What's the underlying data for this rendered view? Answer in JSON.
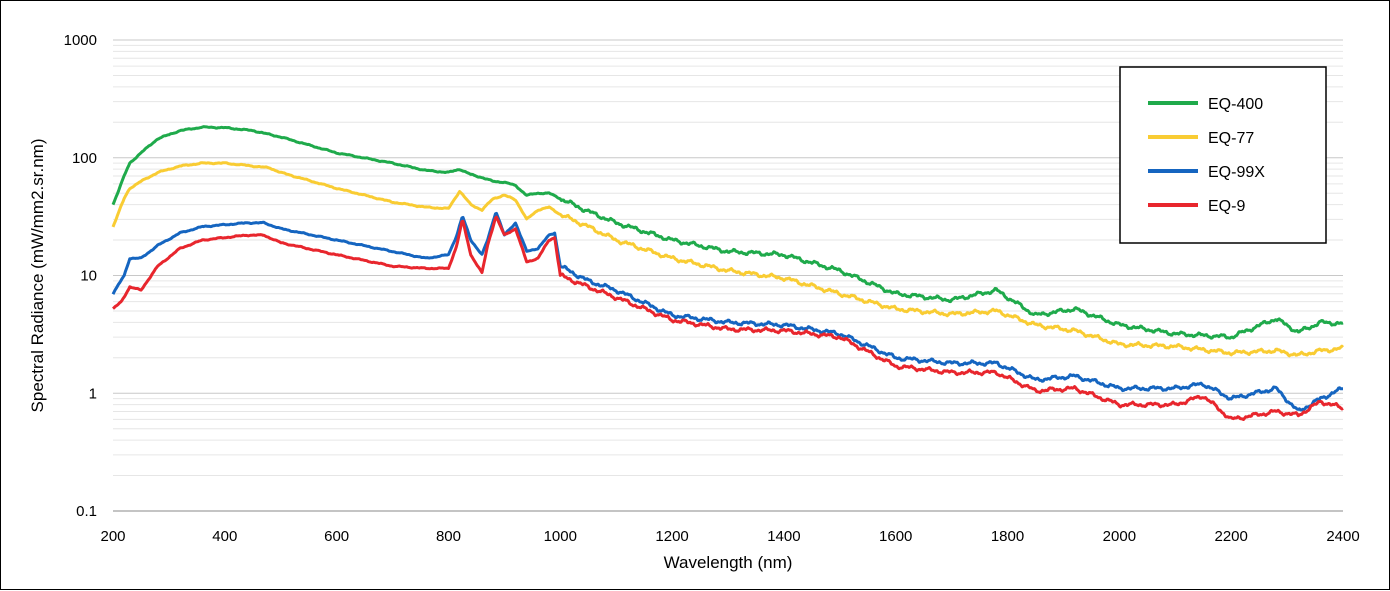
{
  "chart_data": {
    "type": "line",
    "title": "",
    "xlabel": "Wavelength (nm)",
    "ylabel": "Spectral Radiance (mW/mm2.sr.nm)",
    "xlim": [
      200,
      2400
    ],
    "ylim": [
      0.1,
      1000
    ],
    "yscale": "log",
    "x_ticks": [
      "200",
      "400",
      "600",
      "800",
      "1000",
      "1200",
      "1400",
      "1600",
      "1800",
      "2000",
      "2200",
      "2400"
    ],
    "y_ticks": [
      "0.1",
      "1",
      "10",
      "100",
      "1000"
    ],
    "grid": true,
    "legend_position": "top-right",
    "series": [
      {
        "name": "EQ-400",
        "color": "#1faa4b",
        "x": [
          200,
          220,
          230,
          250,
          280,
          320,
          360,
          400,
          450,
          500,
          600,
          700,
          760,
          800,
          820,
          840,
          860,
          880,
          900,
          920,
          940,
          960,
          980,
          1000,
          1050,
          1100,
          1200,
          1300,
          1400,
          1500,
          1600,
          1700,
          1780,
          1850,
          1920,
          2000,
          2100,
          2200,
          2280,
          2320,
          2360,
          2400
        ],
        "values": [
          40,
          70,
          90,
          110,
          145,
          170,
          182,
          180,
          170,
          150,
          110,
          90,
          78,
          75,
          80,
          72,
          68,
          63,
          62,
          58,
          48,
          50,
          50,
          45,
          35,
          28,
          20,
          16,
          15,
          11,
          7,
          6.2,
          7.5,
          4.6,
          5.2,
          3.8,
          3.2,
          3.0,
          4.3,
          3.3,
          4.0,
          3.9
        ]
      },
      {
        "name": "EQ-77",
        "color": "#f9cc33",
        "x": [
          200,
          220,
          230,
          250,
          280,
          320,
          360,
          400,
          450,
          480,
          500,
          600,
          700,
          760,
          800,
          820,
          840,
          860,
          880,
          900,
          920,
          940,
          960,
          980,
          1000,
          1050,
          1100,
          1200,
          1300,
          1400,
          1500,
          1600,
          1700,
          1780,
          1850,
          1920,
          2000,
          2100,
          2200,
          2280,
          2320,
          2360,
          2400
        ],
        "values": [
          26,
          45,
          55,
          63,
          75,
          85,
          90,
          90,
          85,
          82,
          75,
          55,
          42,
          38,
          37,
          52,
          40,
          36,
          45,
          48,
          44,
          30,
          36,
          38,
          33,
          26,
          20,
          14,
          11,
          9.5,
          7,
          5.2,
          4.7,
          5.0,
          3.8,
          3.4,
          2.6,
          2.5,
          2.2,
          2.3,
          2.1,
          2.3,
          2.4
        ]
      },
      {
        "name": "EQ-99X",
        "color": "#1565c0",
        "x": [
          200,
          220,
          230,
          250,
          280,
          320,
          360,
          400,
          440,
          470,
          500,
          600,
          700,
          760,
          800,
          815,
          825,
          840,
          860,
          870,
          885,
          900,
          920,
          940,
          960,
          980,
          990,
          1000,
          1050,
          1100,
          1200,
          1300,
          1400,
          1500,
          1600,
          1700,
          1780,
          1850,
          1920,
          2000,
          2100,
          2150,
          2200,
          2280,
          2320,
          2360,
          2400
        ],
        "values": [
          7,
          10,
          14,
          14,
          18,
          23,
          26,
          27,
          28,
          28,
          25,
          20,
          16,
          14,
          15,
          22,
          32,
          20,
          15,
          20,
          35,
          22,
          28,
          16,
          17,
          22,
          23,
          12,
          9,
          7.5,
          4.6,
          4.0,
          3.8,
          3.2,
          2.0,
          1.8,
          1.8,
          1.3,
          1.4,
          1.1,
          1.1,
          1.2,
          0.9,
          1.1,
          0.7,
          0.9,
          1.1
        ]
      },
      {
        "name": "EQ-9",
        "color": "#e8262d",
        "x": [
          200,
          215,
          230,
          250,
          280,
          320,
          360,
          400,
          440,
          470,
          500,
          600,
          700,
          760,
          800,
          815,
          825,
          840,
          860,
          870,
          885,
          900,
          920,
          940,
          960,
          980,
          990,
          1000,
          1050,
          1100,
          1200,
          1300,
          1400,
          1500,
          1600,
          1700,
          1780,
          1850,
          1920,
          2000,
          2100,
          2150,
          2200,
          2280,
          2320,
          2360,
          2400
        ],
        "values": [
          5.2,
          6,
          8,
          7.5,
          12,
          17,
          20,
          21,
          22,
          22,
          19,
          15,
          12,
          11.5,
          11.5,
          18,
          30,
          15,
          10.5,
          18,
          32,
          22,
          25,
          13,
          14,
          20,
          21,
          10,
          8,
          6.5,
          4.2,
          3.5,
          3.4,
          3.0,
          1.7,
          1.5,
          1.5,
          1.05,
          1.1,
          0.8,
          0.8,
          0.95,
          0.6,
          0.7,
          0.65,
          0.85,
          0.75
        ]
      }
    ]
  }
}
